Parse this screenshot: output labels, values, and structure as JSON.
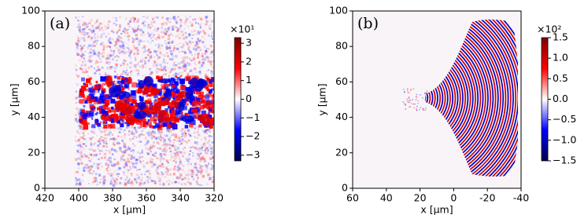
{
  "chart_data": [
    {
      "type": "heatmap",
      "title": "(a)",
      "xlabel": "x [μm]",
      "ylabel": "y [μm]",
      "xlim": [
        420,
        320
      ],
      "xticks": [
        420,
        400,
        380,
        360,
        340,
        320
      ],
      "ylim": [
        0,
        100
      ],
      "yticks": [
        0,
        20,
        40,
        60,
        80,
        100
      ],
      "colorbar_scale": "×10¹",
      "clim": [
        -3.3,
        3.3
      ],
      "cbar_ticks": [
        3,
        2,
        1,
        0,
        {
          "value": -1,
          "label": "−1"
        },
        {
          "value": -2,
          "label": "−2"
        },
        {
          "value": -3,
          "label": "−3"
        }
      ],
      "colormap": "seismic"
    },
    {
      "type": "heatmap",
      "title": "(b)",
      "xlabel": "x [μm]",
      "ylabel": "y [μm]",
      "xlim": [
        60,
        -40
      ],
      "xticks": [
        60,
        40,
        20,
        0,
        {
          "value": -20,
          "label": "-20"
        },
        {
          "value": -40,
          "label": "-40"
        }
      ],
      "ylim": [
        0,
        100
      ],
      "yticks": [
        0,
        20,
        40,
        60,
        80,
        100
      ],
      "colorbar_scale": "×10²",
      "clim": [
        -1.5,
        1.5
      ],
      "cbar_ticks": [
        1.5,
        {
          "value": 1.0,
          "label": "1.0"
        },
        0.5,
        {
          "value": 0.0,
          "label": "0.0"
        },
        {
          "value": -0.5,
          "label": "−0.5"
        },
        {
          "value": -1.0,
          "label": "−1.0"
        },
        {
          "value": -1.5,
          "label": "−1.5"
        }
      ],
      "colormap": "seismic"
    }
  ]
}
